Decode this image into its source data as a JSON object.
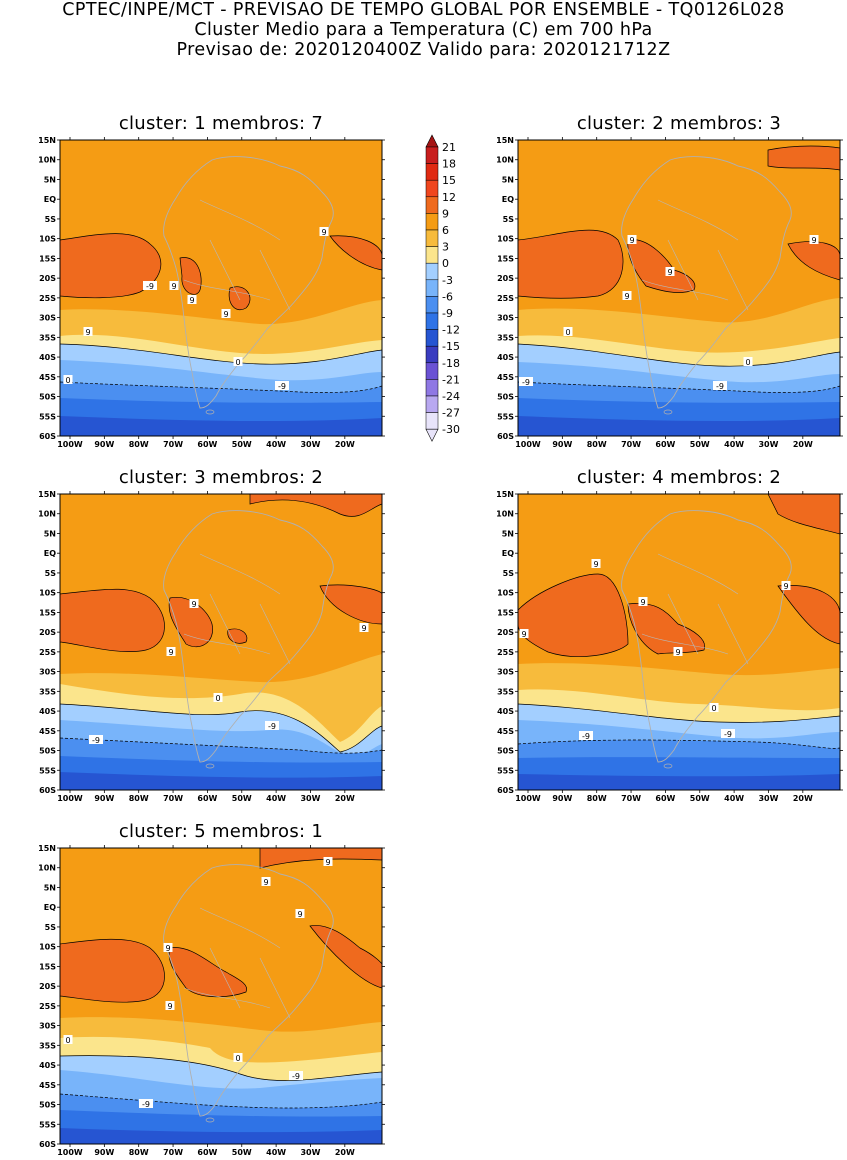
{
  "header": {
    "line1": "CPTEC/INPE/MCT - PREVISAO DE TEMPO GLOBAL POR ENSEMBLE - TQ0126L028",
    "line2": "Cluster Medio para a Temperatura (C) em 700 hPa",
    "line3": "Previsao de: 2020120400Z    Valido para: 2020121712Z"
  },
  "colorbar": {
    "levels": [
      "21",
      "18",
      "15",
      "12",
      "9",
      "6",
      "3",
      "0",
      "-3",
      "-6",
      "-9",
      "-12",
      "-15",
      "-18",
      "-21",
      "-24",
      "-27",
      "-30"
    ],
    "colors": {
      "c21": "#a51414",
      "c18": "#c81e1e",
      "c15": "#e02a12",
      "c12": "#f0461e",
      "c9": "#ef6a1e",
      "c6": "#f59c14",
      "c3": "#f7bb3c",
      "c0": "#fbe58c",
      "cm3": "#a3cfff",
      "cm6": "#78b4fa",
      "cm9": "#4b8ff0",
      "cm12": "#2f73e6",
      "cm15": "#2655d2",
      "cm18": "#3a3cc0",
      "cm21": "#6a52d4",
      "cm24": "#8f78e4",
      "cm27": "#b8a8f0",
      "cm30": "#e8e4fa"
    }
  },
  "axes": {
    "lat_ticks": [
      "15N",
      "10N",
      "5N",
      "EQ",
      "5S",
      "10S",
      "15S",
      "20S",
      "25S",
      "30S",
      "35S",
      "40S",
      "45S",
      "50S",
      "55S",
      "60S"
    ],
    "lon_ticks": [
      "100W",
      "90W",
      "80W",
      "70W",
      "60W",
      "50W",
      "40W",
      "30W",
      "20W"
    ]
  },
  "panels": [
    {
      "title": "cluster: 1   membros: 7",
      "labels": [
        "9",
        "9",
        "9",
        "9",
        "9",
        "0",
        "0",
        "-9",
        "-9"
      ]
    },
    {
      "title": "cluster: 2   membros: 3",
      "labels": [
        "9",
        "9",
        "9",
        "9",
        "0",
        "0",
        "-9",
        "-9"
      ]
    },
    {
      "title": "cluster: 3   membros: 2",
      "labels": [
        "9",
        "9",
        "9",
        "0",
        "-9",
        "-9"
      ]
    },
    {
      "title": "cluster: 4   membros: 2",
      "labels": [
        "9",
        "9",
        "9",
        "9",
        "9",
        "0",
        "-9",
        "-9"
      ]
    },
    {
      "title": "cluster: 5   membros: 1",
      "labels": [
        "9",
        "9",
        "9",
        "9",
        "9",
        "0",
        "0",
        "-9",
        "-9"
      ]
    }
  ]
}
